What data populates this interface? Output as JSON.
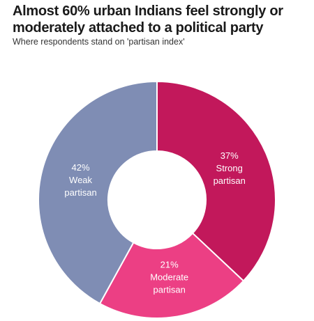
{
  "header": {
    "title": "Almost 60% urban Indians feel strongly or moderately attached to a political party",
    "subtitle": "Where respondents stand on 'partisan index'"
  },
  "chart_data": {
    "type": "pie",
    "donut": true,
    "title": "Almost 60% urban Indians feel strongly or moderately attached to a political party",
    "subtitle": "Where respondents stand on 'partisan index'",
    "categories": [
      "Strong partisan",
      "Moderate partisan",
      "Weak partisan"
    ],
    "values": [
      37,
      21,
      42
    ],
    "unit": "%",
    "colors": [
      "#c2185b",
      "#ec3f84",
      "#7f8db4"
    ],
    "labels": [
      {
        "value": "37%",
        "lines": [
          "Strong",
          "partisan"
        ]
      },
      {
        "value": "21%",
        "lines": [
          "Moderate",
          "partisan"
        ]
      },
      {
        "value": "42%",
        "lines": [
          "Weak",
          "partisan"
        ]
      }
    ],
    "legend": "none"
  }
}
